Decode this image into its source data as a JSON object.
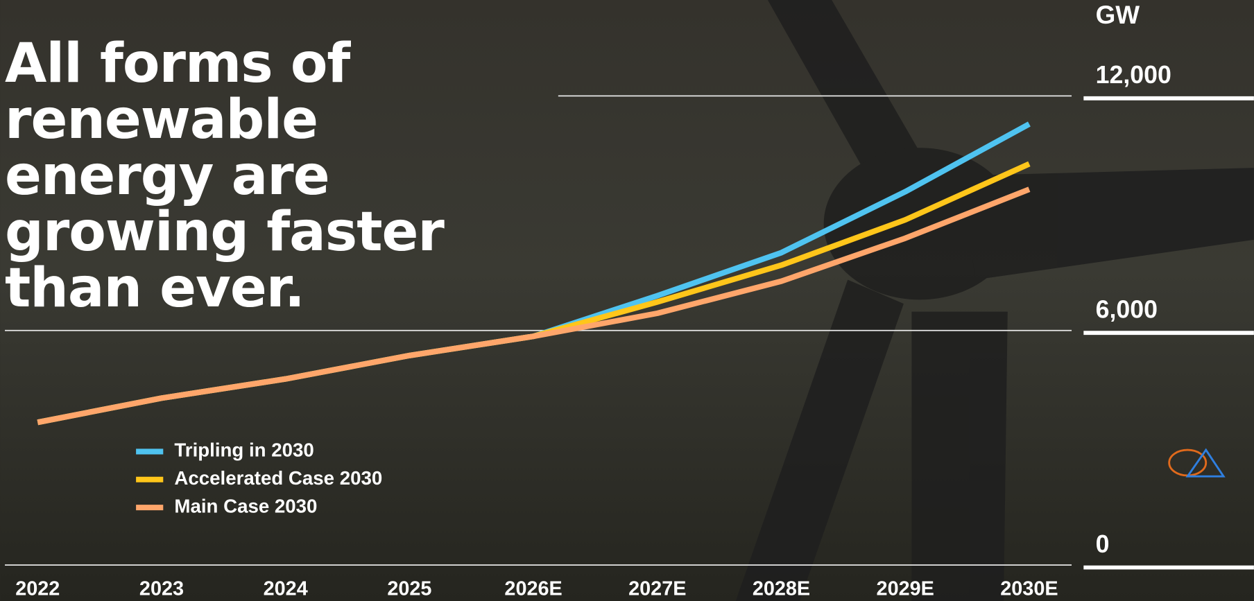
{
  "chart_data": {
    "type": "line",
    "title": "All forms of renewable energy are growing faster than ever.",
    "y_label": "GW",
    "categories": [
      "2022",
      "2023",
      "2024",
      "2025",
      "2026E",
      "2027E",
      "2028E",
      "2029E",
      "2030E"
    ],
    "series": [
      {
        "name": "Tripling in 2030",
        "color": "#4fc3f0",
        "values": [
          3650,
          4270,
          4760,
          5360,
          5850,
          6890,
          7990,
          9550,
          11280
        ]
      },
      {
        "name": "Accelerated Case 2030",
        "color": "#ffc61a",
        "values": [
          3650,
          4270,
          4760,
          5360,
          5850,
          6730,
          7670,
          8830,
          10260
        ]
      },
      {
        "name": "Main Case 2030",
        "color": "#ffa66b",
        "values": [
          3650,
          4270,
          4760,
          5360,
          5850,
          6440,
          7260,
          8360,
          9610
        ]
      }
    ],
    "ylim": [
      0,
      12000
    ],
    "yticks": [
      0,
      {
        "value": 6000,
        "label": "6,000"
      },
      {
        "value": 12000,
        "label": "12,000"
      }
    ],
    "grid": true
  }
}
